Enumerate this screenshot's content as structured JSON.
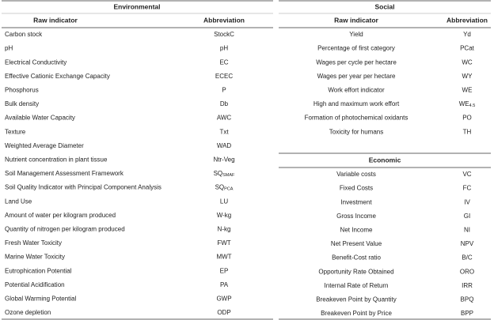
{
  "environmental": {
    "title": "Environmental",
    "columns": [
      "Raw indicator",
      "Abbreviation"
    ],
    "rows": [
      [
        "Carbon stock",
        "StockC"
      ],
      [
        "pH",
        "pH"
      ],
      [
        "Electrical Conductivity",
        "EC"
      ],
      [
        "Effective Cationic Exchange Capacity",
        "ECEC"
      ],
      [
        "Phosphorus",
        "P"
      ],
      [
        "Bulk density",
        "Db"
      ],
      [
        "Available Water Capacity",
        "AWC"
      ],
      [
        "Texture",
        "Txt"
      ],
      [
        "Weighted Average Diameter",
        "WAD"
      ],
      [
        "Nutrient concentration in plant tissue",
        "Ntr-Veg"
      ],
      [
        "Soil Management Assessment Framework",
        {
          "main": "SQ",
          "sub": "SMAF"
        }
      ],
      [
        "Soil Quality Indicator with Principal Component Analysis",
        {
          "main": "SQ",
          "sub": "PCA"
        }
      ],
      [
        "Land Use",
        "LU"
      ],
      [
        "Amount of water per kilogram produced",
        "W-kg"
      ],
      [
        "Quantity of nitrogen per kilogram produced",
        "N-kg"
      ],
      [
        "Fresh Water Toxicity",
        "FWT"
      ],
      [
        "Marine Water Toxicity",
        "MWT"
      ],
      [
        "Eutrophication Potential",
        "EP"
      ],
      [
        "Potential Acidification",
        "PA"
      ],
      [
        "Global Warming Potential",
        "GWP"
      ],
      [
        "Ozone depletion",
        "ODP"
      ]
    ]
  },
  "social": {
    "title": "Social",
    "columns": [
      "Raw indicator",
      "Abbreviation"
    ],
    "rows": [
      [
        "Yield",
        "Yd"
      ],
      [
        "Percentage of first category",
        "PCat"
      ],
      [
        "Wages per cycle per hectare",
        "WC"
      ],
      [
        "Wages per year per hectare",
        "WY"
      ],
      [
        "Work effort indicator",
        "WE"
      ],
      [
        "High and maximum work effort",
        {
          "main": "WE",
          "sub": "4.5"
        }
      ],
      [
        "Formation of photochemical oxidants",
        "PO"
      ],
      [
        "Toxicity for humans",
        "TH"
      ]
    ]
  },
  "economic": {
    "title": "Economic",
    "rows": [
      [
        "Variable costs",
        "VC"
      ],
      [
        "Fixed Costs",
        "FC"
      ],
      [
        "Investment",
        "IV"
      ],
      [
        "Gross Income",
        "GI"
      ],
      [
        "Net Income",
        "NI"
      ],
      [
        "Net Present Value",
        "NPV"
      ],
      [
        "Benefit-Cost ratio",
        "B/C"
      ],
      [
        "Opportunity Rate Obtained",
        "ORO"
      ],
      [
        "Internal Rate of Return",
        "IRR"
      ],
      [
        "Breakeven Point by Quantity",
        "BPQ"
      ],
      [
        "Breakeven Point by Price",
        "BPP"
      ]
    ]
  }
}
